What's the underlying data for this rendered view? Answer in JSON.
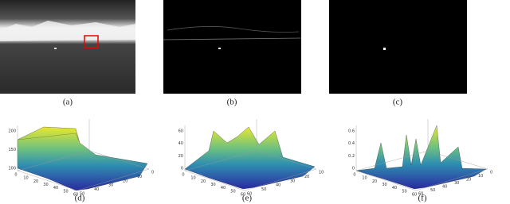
{
  "panels": [
    {
      "caption": "(a)"
    },
    {
      "caption": "(b)"
    },
    {
      "caption": "(c)"
    },
    {
      "caption": "(d)",
      "z_ticks": [
        "200",
        "150",
        "100"
      ],
      "x_ticks": [
        "0",
        "10",
        "20",
        "30",
        "40",
        "50",
        "60"
      ],
      "y_ticks": [
        "50",
        "40",
        "30",
        "20",
        "10",
        "0"
      ]
    },
    {
      "caption": "(e)",
      "z_ticks": [
        "60",
        "40",
        "20",
        "0"
      ],
      "x_ticks": [
        "0",
        "10",
        "20",
        "30",
        "40",
        "50",
        "60"
      ],
      "y_ticks": [
        "60",
        "50",
        "40",
        "30",
        "20",
        "10"
      ]
    },
    {
      "caption": "(f)",
      "z_ticks": [
        "0.6",
        "0.4",
        "0.2",
        "0"
      ],
      "x_ticks": [
        "0",
        "10",
        "20",
        "30",
        "40",
        "50",
        "60"
      ],
      "y_ticks": [
        "60",
        "50",
        "40",
        "30",
        "20",
        "10",
        "0"
      ]
    }
  ]
}
